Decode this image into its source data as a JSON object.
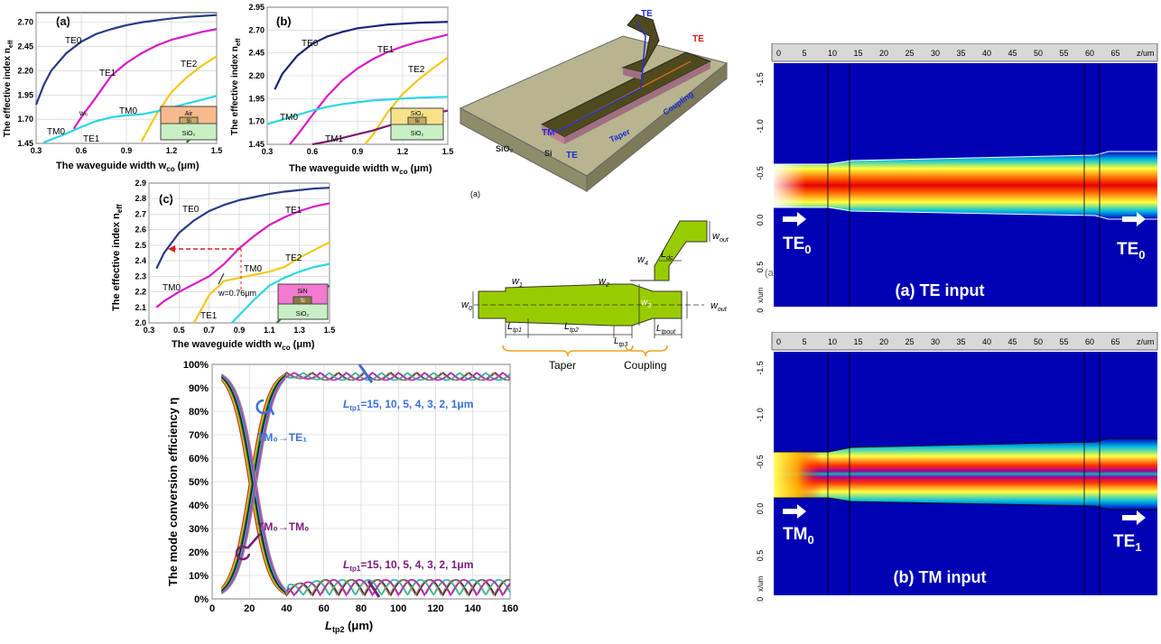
{
  "chart_data": [
    {
      "type": "line",
      "panel": "(a)",
      "xlabel": "The waveguide width w",
      "xlabel_sub": "co",
      "xlabel_unit": "(μm)",
      "ylabel": "The effective index n",
      "ylabel_sub": "eff",
      "xlim": [
        0.3,
        1.5
      ],
      "ylim": [
        1.45,
        2.8
      ],
      "xticks": [
        "0.3",
        "0.6",
        "0.9",
        "1.2",
        "1.5"
      ],
      "yticks": [
        "1.45",
        "1.70",
        "1.95",
        "2.20",
        "2.45",
        "2.70"
      ],
      "series": [
        {
          "name": "TE0",
          "color": "#283a87",
          "x": [
            0.3,
            0.35,
            0.4,
            0.5,
            0.6,
            0.7,
            0.8,
            0.9,
            1.0,
            1.1,
            1.2,
            1.3,
            1.4,
            1.5
          ],
          "y": [
            1.85,
            2.05,
            2.2,
            2.38,
            2.5,
            2.58,
            2.63,
            2.67,
            2.7,
            2.72,
            2.74,
            2.755,
            2.765,
            2.775
          ]
        },
        {
          "name": "TE1",
          "color": "#d61bc8",
          "x": [
            0.55,
            0.6,
            0.7,
            0.8,
            0.9,
            1.0,
            1.1,
            1.2,
            1.3,
            1.4,
            1.5
          ],
          "y": [
            1.6,
            1.72,
            1.93,
            2.15,
            2.28,
            2.38,
            2.46,
            2.52,
            2.56,
            2.6,
            2.63
          ]
        },
        {
          "name": "TE2",
          "color": "#f2c81a",
          "x": [
            1.0,
            1.1,
            1.2,
            1.3,
            1.4,
            1.5
          ],
          "y": [
            1.47,
            1.75,
            1.98,
            2.13,
            2.25,
            2.35
          ]
        },
        {
          "name": "TM0",
          "color": "#2ad6e6",
          "x": [
            0.35,
            0.5,
            0.6,
            0.7,
            0.8,
            0.9,
            1.0,
            1.1,
            1.2,
            1.3,
            1.4,
            1.5
          ],
          "y": [
            1.46,
            1.55,
            1.62,
            1.68,
            1.72,
            1.74,
            1.75,
            1.78,
            1.82,
            1.86,
            1.9,
            1.94
          ]
        },
        {
          "name": "TM1",
          "color": "#2d7a2d",
          "x": [
            1.3,
            1.4,
            1.5
          ],
          "y": [
            1.46,
            1.6,
            1.72
          ]
        }
      ],
      "labels": [
        "TE0",
        "TE1",
        "TE2",
        "TM0",
        "TM0",
        "TE1",
        "w₀"
      ],
      "inset": [
        "Air",
        "Si",
        "SiO₂"
      ]
    },
    {
      "type": "line",
      "panel": "(b)",
      "xlabel": "The waveguide width w",
      "xlabel_sub": "co",
      "xlabel_unit": "(μm)",
      "ylabel": "The effective index n",
      "ylabel_sub": "eff",
      "xlim": [
        0.3,
        1.5
      ],
      "ylim": [
        1.45,
        2.95
      ],
      "xticks": [
        "0.3",
        "0.6",
        "0.9",
        "1.2",
        "1.5"
      ],
      "yticks": [
        "1.45",
        "1.70",
        "1.95",
        "2.20",
        "2.45",
        "2.70",
        "2.95"
      ],
      "series": [
        {
          "name": "TE0",
          "color": "#1a2378",
          "x": [
            0.35,
            0.4,
            0.5,
            0.6,
            0.7,
            0.8,
            0.9,
            1.0,
            1.1,
            1.2,
            1.3,
            1.4,
            1.5
          ],
          "y": [
            2.05,
            2.22,
            2.42,
            2.55,
            2.63,
            2.68,
            2.72,
            2.74,
            2.76,
            2.77,
            2.78,
            2.785,
            2.79
          ]
        },
        {
          "name": "TE1",
          "color": "#d61bc8",
          "x": [
            0.45,
            0.5,
            0.6,
            0.7,
            0.8,
            0.9,
            1.0,
            1.1,
            1.2,
            1.3,
            1.4,
            1.5
          ],
          "y": [
            1.45,
            1.55,
            1.77,
            1.98,
            2.15,
            2.28,
            2.38,
            2.46,
            2.52,
            2.57,
            2.61,
            2.65
          ]
        },
        {
          "name": "TE2",
          "color": "#f2c81a",
          "x": [
            0.95,
            1.0,
            1.1,
            1.2,
            1.3,
            1.4,
            1.5
          ],
          "y": [
            1.45,
            1.55,
            1.8,
            2.0,
            2.15,
            2.28,
            2.4
          ]
        },
        {
          "name": "TM0",
          "color": "#2ad6e6",
          "x": [
            0.3,
            0.4,
            0.5,
            0.6,
            0.7,
            0.8,
            0.9,
            1.0,
            1.1,
            1.2,
            1.3,
            1.4,
            1.5
          ],
          "y": [
            1.67,
            1.72,
            1.77,
            1.82,
            1.86,
            1.89,
            1.91,
            1.93,
            1.94,
            1.95,
            1.96,
            1.965,
            1.97
          ]
        },
        {
          "name": "TM1",
          "color": "#7a1a6a",
          "x": [
            0.6,
            0.7,
            0.8,
            0.9,
            1.0,
            1.1,
            1.2,
            1.3,
            1.4,
            1.5
          ],
          "y": [
            1.45,
            1.48,
            1.52,
            1.56,
            1.6,
            1.65,
            1.7,
            1.74,
            1.78,
            1.82
          ]
        }
      ],
      "labels": [
        "TE0",
        "TE1",
        "TE2",
        "TM0",
        "TM1"
      ],
      "inset": [
        "SiO₂",
        "Si",
        "SiO₂"
      ]
    },
    {
      "type": "line",
      "panel": "(c)",
      "xlabel": "The waveguide width w",
      "xlabel_sub": "co",
      "xlabel_unit": "(μm)",
      "ylabel": "The effective index n",
      "ylabel_sub": "eff",
      "xlim": [
        0.3,
        1.5
      ],
      "ylim": [
        2.0,
        2.9
      ],
      "xticks": [
        "0.3",
        "0.5",
        "0.7",
        "0.9",
        "1.1",
        "1.3",
        "1.5"
      ],
      "yticks": [
        "2.0",
        "2.1",
        "2.2",
        "2.3",
        "2.4",
        "2.5",
        "2.6",
        "2.7",
        "2.8",
        "2.9"
      ],
      "series": [
        {
          "name": "TE0",
          "color": "#283a87",
          "x": [
            0.35,
            0.4,
            0.5,
            0.6,
            0.7,
            0.8,
            0.9,
            1.0,
            1.1,
            1.2,
            1.3,
            1.4,
            1.5
          ],
          "y": [
            2.35,
            2.45,
            2.58,
            2.66,
            2.72,
            2.76,
            2.79,
            2.81,
            2.83,
            2.845,
            2.855,
            2.865,
            2.87
          ]
        },
        {
          "name": "TE1",
          "color": "#d61bc8",
          "x": [
            0.35,
            0.4,
            0.5,
            0.6,
            0.7,
            0.8,
            0.9,
            1.0,
            1.1,
            1.2,
            1.3,
            1.4,
            1.5
          ],
          "y": [
            2.1,
            2.14,
            2.2,
            2.25,
            2.3,
            2.38,
            2.48,
            2.56,
            2.63,
            2.68,
            2.72,
            2.75,
            2.77
          ]
        },
        {
          "name": "TM0",
          "color": "#f2c81a",
          "x": [
            0.6,
            0.7,
            0.8,
            0.9,
            1.0,
            1.1,
            1.2,
            1.3,
            1.4,
            1.5
          ],
          "y": [
            2.0,
            2.18,
            2.27,
            2.29,
            2.31,
            2.33,
            2.36,
            2.42,
            2.47,
            2.52
          ]
        },
        {
          "name": "TE2",
          "color": "#2ad6e6",
          "x": [
            0.85,
            0.9,
            1.0,
            1.1,
            1.2,
            1.3,
            1.4,
            1.5
          ],
          "y": [
            2.0,
            2.05,
            2.15,
            2.24,
            2.29,
            2.33,
            2.36,
            2.38
          ]
        },
        {
          "name": "TM1",
          "color": "#2d7a2d",
          "x": [
            1.15,
            1.2,
            1.3,
            1.4,
            1.5
          ],
          "y": [
            2.0,
            2.05,
            2.12,
            2.18,
            2.24
          ]
        }
      ],
      "labels": [
        "TE0",
        "TE1",
        "TM0",
        "TM0",
        "TE2",
        "TE1"
      ],
      "annotation": "w=0.76μm",
      "inset": [
        "SiN",
        "Si",
        "SiO₂"
      ]
    },
    {
      "type": "line",
      "panel": "conversion",
      "xlabel": "L",
      "xlabel_sub": "tp2",
      "xlabel_unit": "(μm)",
      "ylabel": "The mode conversion efficiency η",
      "xlim": [
        0,
        160
      ],
      "ylim": [
        0,
        100
      ],
      "xticks": [
        "0",
        "20",
        "40",
        "60",
        "80",
        "100",
        "120",
        "140",
        "160"
      ],
      "yticks": [
        "0%",
        "10%",
        "20%",
        "30%",
        "40%",
        "50%",
        "60%",
        "70%",
        "80%",
        "90%",
        "100%"
      ],
      "legend_top": "L",
      "legend_top_sub": "tp1",
      "legend_values": "=15, 10, 5, 4, 3, 2, 1μm",
      "label_te": "TM₀→TE₁",
      "label_tm": "TM₀→TM₀",
      "series_colors": [
        "#c0392b",
        "#f4c20d",
        "#2e8b2e",
        "#111111",
        "#19b5c9",
        "#d61bc8",
        "#8a8a8a"
      ]
    }
  ],
  "device3d": {
    "labels": [
      "TE",
      "TE",
      "TM",
      "Si",
      "TE",
      "SiO₂",
      "Taper",
      "Coupling"
    ],
    "caption": "(a)"
  },
  "schematic": {
    "labels": {
      "w0": "w",
      "w0_sub": "0",
      "w1": "w",
      "w1_sub": "1",
      "w2": "w",
      "w2_sub": "2",
      "w3": "w",
      "w3_sub": "3",
      "w4": "w",
      "w4_sub": "4",
      "wout_top": "w",
      "wout_top_sub": "out",
      "wout_bot": "w",
      "wout_bot_sub": "out",
      "ldc": "L",
      "ldc_sub": "dc",
      "ltp1": "L",
      "ltp1_sub": "tp1",
      "ltp2": "L",
      "ltp2_sub": "tp2",
      "ltp3": "L",
      "ltp3_sub": "tp3",
      "ltpout": "L",
      "ltpout_sub": "tpout",
      "taper": "Taper",
      "coupling": "Coupling"
    }
  },
  "field_plots": [
    {
      "ruler_ticks": [
        "0",
        "5",
        "10",
        "15",
        "20",
        "25",
        "30",
        "35",
        "40",
        "45",
        "50",
        "55",
        "60",
        "65",
        "z/um"
      ],
      "y_ticks": [
        "-1.5",
        "-1.0",
        "-0.5",
        "0.0",
        "0.5",
        "1.0"
      ],
      "y_unit": "x/um",
      "input_label": "TE",
      "input_sub": "0",
      "output_label": "TE",
      "output_sub": "0",
      "caption": "(a) TE input"
    },
    {
      "ruler_ticks": [
        "0",
        "5",
        "10",
        "15",
        "20",
        "25",
        "30",
        "35",
        "40",
        "45",
        "50",
        "55",
        "60",
        "65",
        "z/um"
      ],
      "y_ticks": [
        "-1.5",
        "-1.0",
        "-0.5",
        "0.0",
        "0.5",
        "1.0"
      ],
      "y_unit": "x/um",
      "input_label": "TM",
      "input_sub": "0",
      "output_label": "TE",
      "output_sub": "1",
      "caption": "(b) TM input"
    }
  ],
  "stray_text": "(a"
}
